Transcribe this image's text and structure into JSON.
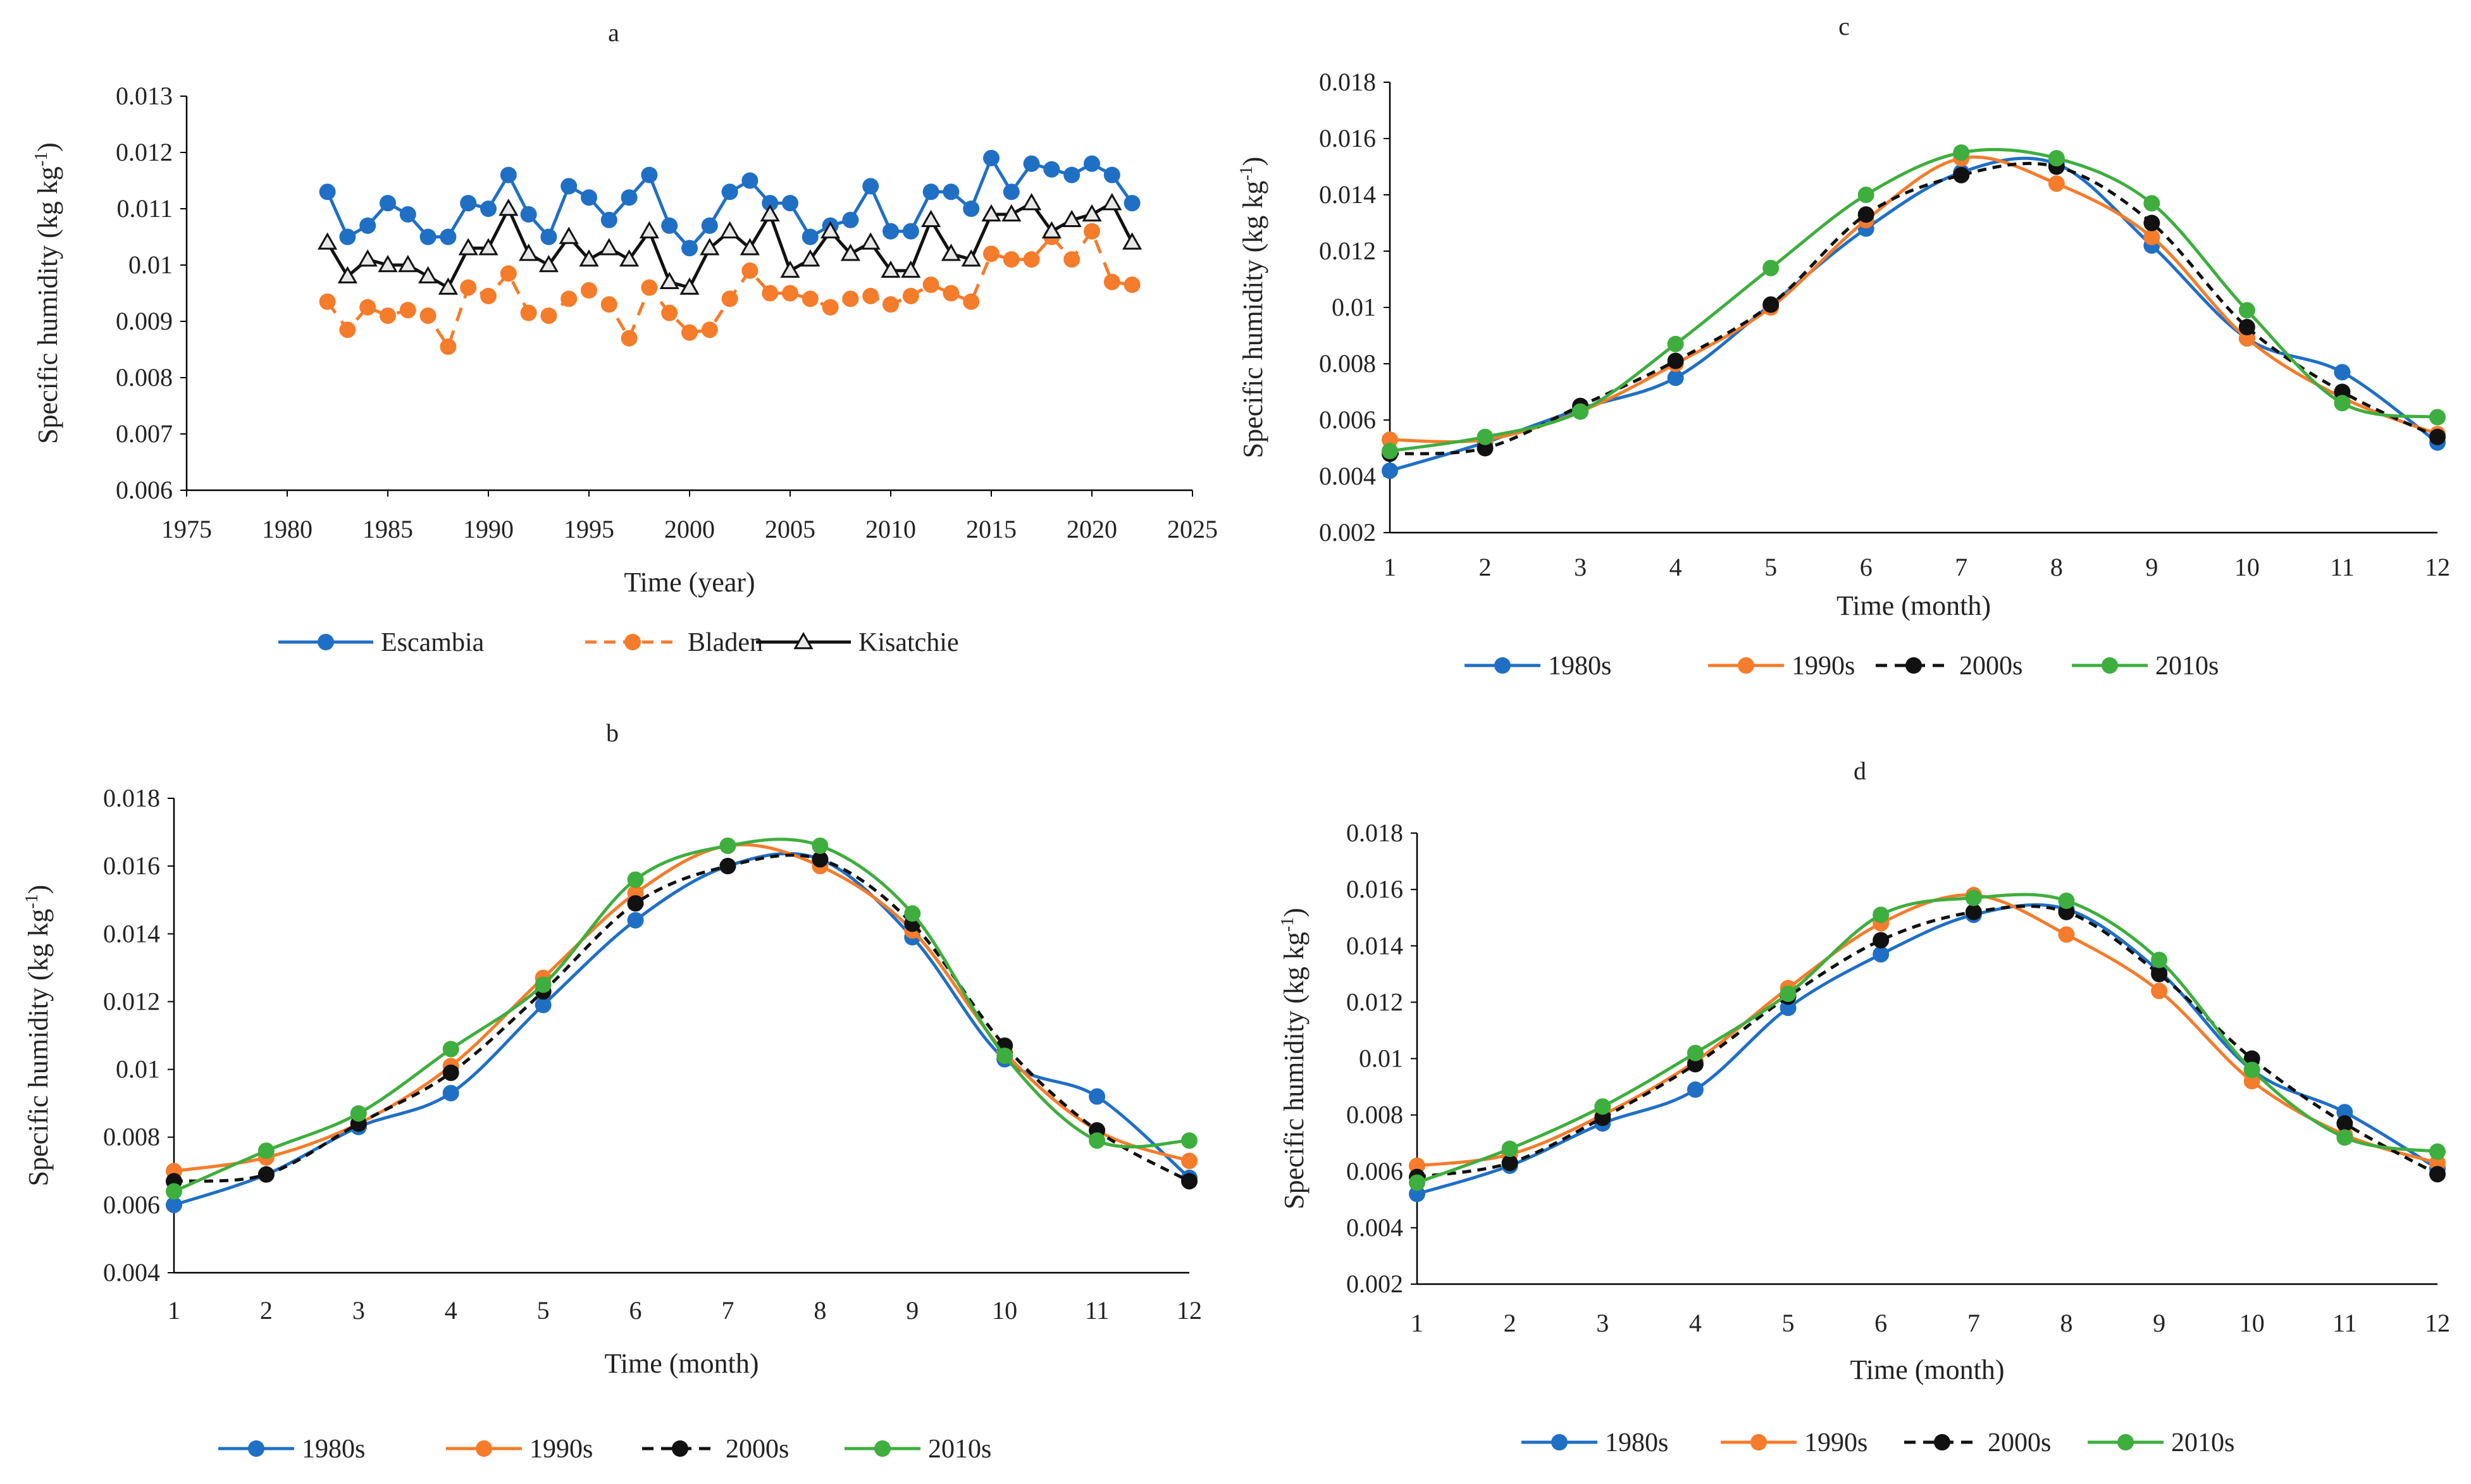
{
  "colors": {
    "blue": "#1f6fc5",
    "orange": "#f47c2b",
    "black": "#111111",
    "green": "#3eae3e",
    "axis": "#000000"
  },
  "chart_data": [
    {
      "panel": "a",
      "type": "line",
      "title": "a",
      "xlabel": "Time (year)",
      "ylabel": "Specific humidity (kg kg",
      "ylabel_sup": "-1",
      "ylabel_tail": ")",
      "xlim": [
        1975,
        2025
      ],
      "xticks": [
        "1975",
        "1980",
        "1985",
        "1990",
        "1995",
        "2000",
        "2005",
        "2010",
        "2015",
        "2020",
        "2025"
      ],
      "ylim": [
        0.006,
        0.013
      ],
      "yticks": [
        "0.006",
        "0.007",
        "0.008",
        "0.009",
        "0.01",
        "0.011",
        "0.012",
        "0.013"
      ],
      "legend_position": "bottom",
      "x": [
        1982,
        1983,
        1984,
        1985,
        1986,
        1987,
        1988,
        1989,
        1990,
        1991,
        1992,
        1993,
        1994,
        1995,
        1996,
        1997,
        1998,
        1999,
        2000,
        2001,
        2002,
        2003,
        2004,
        2005,
        2006,
        2007,
        2008,
        2009,
        2010,
        2011,
        2012,
        2013,
        2014,
        2015,
        2016,
        2017,
        2018,
        2019,
        2020,
        2021,
        2022
      ],
      "series": [
        {
          "name": "Escambia",
          "color": "#1f6fc5",
          "dash": false,
          "marker": "circle",
          "values": [
            0.0113,
            0.0105,
            0.0107,
            0.0111,
            0.0109,
            0.0105,
            0.0105,
            0.0111,
            0.011,
            0.0116,
            0.0109,
            0.0105,
            0.0114,
            0.0112,
            0.0108,
            0.0112,
            0.0116,
            0.0107,
            0.0103,
            0.0107,
            0.0113,
            0.0115,
            0.0111,
            0.0111,
            0.0105,
            0.0107,
            0.0108,
            0.0114,
            0.0106,
            0.0106,
            0.0113,
            0.0113,
            0.011,
            0.0119,
            0.0113,
            0.0118,
            0.0117,
            0.0116,
            0.0118,
            0.0116,
            0.0111
          ]
        },
        {
          "name": "Bladen",
          "color": "#f47c2b",
          "dash": true,
          "marker": "circle",
          "values": [
            0.00935,
            0.00885,
            0.00925,
            0.0091,
            0.0092,
            0.0091,
            0.00855,
            0.0096,
            0.00945,
            0.00985,
            0.00915,
            0.0091,
            0.0094,
            0.00955,
            0.0093,
            0.0087,
            0.0096,
            0.00915,
            0.0088,
            0.00885,
            0.0094,
            0.0099,
            0.0095,
            0.0095,
            0.0094,
            0.00925,
            0.0094,
            0.00945,
            0.0093,
            0.00945,
            0.00965,
            0.0095,
            0.00935,
            0.0102,
            0.0101,
            0.0101,
            0.0105,
            0.0101,
            0.0106,
            0.0097,
            0.00965
          ]
        },
        {
          "name": "Kisatchie",
          "color": "#111111",
          "dash": false,
          "marker": "triangle",
          "values": [
            0.0104,
            0.0098,
            0.0101,
            0.01,
            0.01,
            0.0098,
            0.0096,
            0.0103,
            0.0103,
            0.011,
            0.0102,
            0.01,
            0.0105,
            0.0101,
            0.0103,
            0.0101,
            0.0106,
            0.0097,
            0.0096,
            0.0103,
            0.0106,
            0.0103,
            0.0109,
            0.0099,
            0.0101,
            0.0106,
            0.0102,
            0.0104,
            0.0099,
            0.0099,
            0.0108,
            0.0102,
            0.0101,
            0.0109,
            0.0109,
            0.0111,
            0.0106,
            0.0108,
            0.0109,
            0.0111,
            0.0104
          ]
        }
      ]
    },
    {
      "panel": "b",
      "type": "line",
      "title": "b",
      "xlabel": "Time (month)",
      "ylabel": "Specific humidity (kg kg",
      "ylabel_sup": "-1",
      "ylabel_tail": ")",
      "xlim": [
        1,
        12
      ],
      "xticks": [
        "1",
        "2",
        "3",
        "4",
        "5",
        "6",
        "7",
        "8",
        "9",
        "10",
        "11",
        "12"
      ],
      "ylim": [
        0.004,
        0.018
      ],
      "yticks": [
        "0.004",
        "0.006",
        "0.008",
        "0.01",
        "0.012",
        "0.014",
        "0.016",
        "0.018"
      ],
      "legend_position": "bottom",
      "x": [
        1,
        2,
        3,
        4,
        5,
        6,
        7,
        8,
        9,
        10,
        11,
        12
      ],
      "series": [
        {
          "name": "1980s",
          "color": "#1f6fc5",
          "dash": false,
          "values": [
            0.006,
            0.0069,
            0.0083,
            0.0093,
            0.0119,
            0.0144,
            0.016,
            0.0162,
            0.0139,
            0.0103,
            0.0092,
            0.0068
          ]
        },
        {
          "name": "1990s",
          "color": "#f47c2b",
          "dash": false,
          "values": [
            0.007,
            0.0074,
            0.0084,
            0.0101,
            0.0127,
            0.0152,
            0.0166,
            0.016,
            0.0141,
            0.0105,
            0.0082,
            0.0073
          ]
        },
        {
          "name": "2000s",
          "color": "#111111",
          "dash": true,
          "values": [
            0.0067,
            0.0069,
            0.0084,
            0.0099,
            0.0123,
            0.0149,
            0.016,
            0.0162,
            0.0143,
            0.0107,
            0.0082,
            0.0067
          ]
        },
        {
          "name": "2010s",
          "color": "#3eae3e",
          "dash": false,
          "values": [
            0.0064,
            0.0076,
            0.0087,
            0.0106,
            0.0125,
            0.0156,
            0.0166,
            0.0166,
            0.0146,
            0.0104,
            0.0079,
            0.0079
          ]
        }
      ]
    },
    {
      "panel": "c",
      "type": "line",
      "title": "c",
      "xlabel": "Time (month)",
      "ylabel": "Specific humidity (kg kg",
      "ylabel_sup": "-1",
      "ylabel_tail": ")",
      "xlim": [
        1,
        12
      ],
      "xticks": [
        "1",
        "2",
        "3",
        "4",
        "5",
        "6",
        "7",
        "8",
        "9",
        "10",
        "11",
        "12"
      ],
      "ylim": [
        0.002,
        0.018
      ],
      "yticks": [
        "0.002",
        "0.004",
        "0.006",
        "0.008",
        "0.01",
        "0.012",
        "0.014",
        "0.016",
        "0.018"
      ],
      "legend_position": "bottom",
      "x": [
        1,
        2,
        3,
        4,
        5,
        6,
        7,
        8,
        9,
        10,
        11,
        12
      ],
      "series": [
        {
          "name": "1980s",
          "color": "#1f6fc5",
          "dash": false,
          "values": [
            0.0042,
            0.0052,
            0.0064,
            0.0075,
            0.0101,
            0.0128,
            0.0148,
            0.0151,
            0.0122,
            0.0089,
            0.0077,
            0.0052
          ]
        },
        {
          "name": "1990s",
          "color": "#f47c2b",
          "dash": false,
          "values": [
            0.0053,
            0.0053,
            0.0063,
            0.008,
            0.01,
            0.0131,
            0.0153,
            0.0144,
            0.0125,
            0.0089,
            0.0068,
            0.0055
          ]
        },
        {
          "name": "2000s",
          "color": "#111111",
          "dash": true,
          "values": [
            0.0048,
            0.005,
            0.0065,
            0.0081,
            0.0101,
            0.0133,
            0.0147,
            0.015,
            0.013,
            0.0093,
            0.007,
            0.0054
          ]
        },
        {
          "name": "2010s",
          "color": "#3eae3e",
          "dash": false,
          "values": [
            0.0049,
            0.0054,
            0.0063,
            0.0087,
            0.0114,
            0.014,
            0.0155,
            0.0153,
            0.0137,
            0.0099,
            0.0066,
            0.0061
          ]
        }
      ]
    },
    {
      "panel": "d",
      "type": "line",
      "title": "d",
      "xlabel": "Time (month)",
      "ylabel": "Specific humidity (kg kg",
      "ylabel_sup": "-1",
      "ylabel_tail": ")",
      "xlim": [
        1,
        12
      ],
      "xticks": [
        "1",
        "2",
        "3",
        "4",
        "5",
        "6",
        "7",
        "8",
        "9",
        "10",
        "11",
        "12"
      ],
      "ylim": [
        0.002,
        0.018
      ],
      "yticks": [
        "0.002",
        "0.004",
        "0.006",
        "0.008",
        "0.01",
        "0.012",
        "0.014",
        "0.016",
        "0.018"
      ],
      "legend_position": "bottom",
      "x": [
        1,
        2,
        3,
        4,
        5,
        6,
        7,
        8,
        9,
        10,
        11,
        12
      ],
      "series": [
        {
          "name": "1980s",
          "color": "#1f6fc5",
          "dash": false,
          "values": [
            0.0052,
            0.0062,
            0.0077,
            0.0089,
            0.0118,
            0.0137,
            0.0151,
            0.0153,
            0.0131,
            0.0096,
            0.0081,
            0.0061
          ]
        },
        {
          "name": "1990s",
          "color": "#f47c2b",
          "dash": false,
          "values": [
            0.0062,
            0.0066,
            0.008,
            0.0099,
            0.0125,
            0.0148,
            0.0158,
            0.0144,
            0.0124,
            0.0092,
            0.0073,
            0.0063
          ]
        },
        {
          "name": "2000s",
          "color": "#111111",
          "dash": true,
          "values": [
            0.0058,
            0.0063,
            0.0079,
            0.0098,
            0.0122,
            0.0142,
            0.0152,
            0.0152,
            0.013,
            0.01,
            0.0077,
            0.0059
          ]
        },
        {
          "name": "2010s",
          "color": "#3eae3e",
          "dash": false,
          "values": [
            0.0056,
            0.0068,
            0.0083,
            0.0102,
            0.0123,
            0.0151,
            0.0157,
            0.0156,
            0.0135,
            0.0096,
            0.0072,
            0.0067
          ]
        }
      ]
    }
  ]
}
